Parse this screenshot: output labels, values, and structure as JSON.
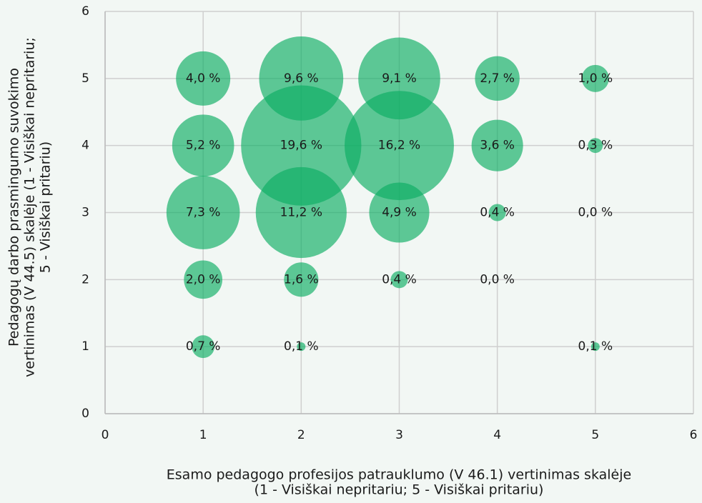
{
  "chart_data": {
    "type": "bubble",
    "xlabel": [
      "Esamo pedagogo profesijos patrauklumo (V 46.1) vertinimas skalėje",
      "(1 - Visiškai nepritariu; 5 - Visiškai pritariu)"
    ],
    "ylabel": [
      "Pedagogų darbo prasmingumo suvokimo",
      "vertinimas (V 44.5) skalėje (1 - Visiškai nepritariu;",
      "5 - Visiškai pritariu)"
    ],
    "xlim": [
      0,
      6
    ],
    "xticks": [
      0,
      1,
      2,
      3,
      4,
      5,
      6
    ],
    "ylim": [
      0,
      6
    ],
    "yticks": [
      0,
      1,
      2,
      3,
      4,
      5,
      6
    ],
    "grid": true,
    "series": [
      {
        "color": "#0aae63",
        "x": [
          1,
          2,
          3,
          4,
          5,
          1,
          2,
          3,
          4,
          5,
          1,
          2,
          3,
          4,
          5,
          1,
          2,
          3,
          4,
          1,
          2,
          5
        ],
        "y": [
          5,
          5,
          5,
          5,
          5,
          4,
          4,
          4,
          4,
          4,
          3,
          3,
          3,
          3,
          3,
          2,
          2,
          2,
          2,
          1,
          1,
          1
        ],
        "sizes": [
          4.0,
          9.6,
          9.1,
          2.7,
          1.0,
          5.2,
          19.6,
          16.2,
          3.6,
          0.3,
          7.3,
          11.2,
          4.9,
          0.4,
          0.0,
          2.0,
          1.6,
          0.4,
          0.0,
          0.7,
          0.1,
          0.1
        ],
        "value_labels": [
          "4,0 %",
          "9,6 %",
          "9,1 %",
          "2,7 %",
          "1,0 %",
          "5,2 %",
          "19,6 %",
          "16,2 %",
          "3,6 %",
          "0,3 %",
          "7,3 %",
          "11,2 %",
          "4,9 %",
          "0,4 %",
          "0,0 %",
          "2,0 %",
          "1,6 %",
          "0,4 %",
          "0,0 %",
          "0,7 %",
          "0,1 %",
          "0,1 %"
        ]
      }
    ]
  }
}
